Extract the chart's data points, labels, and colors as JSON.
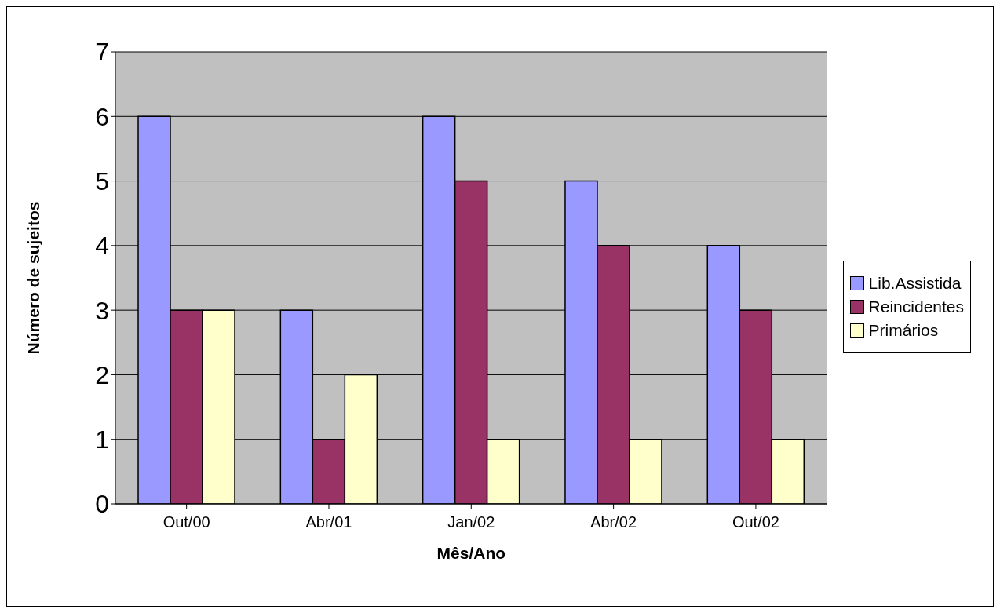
{
  "chart_data": {
    "type": "bar",
    "xlabel": "Mês/Ano",
    "ylabel": "Número de sujeitos",
    "categories": [
      "Out/00",
      "Abr/01",
      "Jan/02",
      "Abr/02",
      "Out/02"
    ],
    "series": [
      {
        "name": "Lib.Assistida",
        "color": "#9999ff",
        "values": [
          6,
          3,
          6,
          5,
          4
        ]
      },
      {
        "name": "Reincidentes",
        "color": "#993366",
        "values": [
          3,
          1,
          5,
          4,
          3
        ]
      },
      {
        "name": "Primários",
        "color": "#ffffcc",
        "values": [
          3,
          2,
          1,
          1,
          1
        ]
      }
    ],
    "ylim": [
      0,
      7
    ],
    "yticks": [
      0,
      1,
      2,
      3,
      4,
      5,
      6,
      7
    ],
    "grid": "y",
    "legend": "right"
  }
}
